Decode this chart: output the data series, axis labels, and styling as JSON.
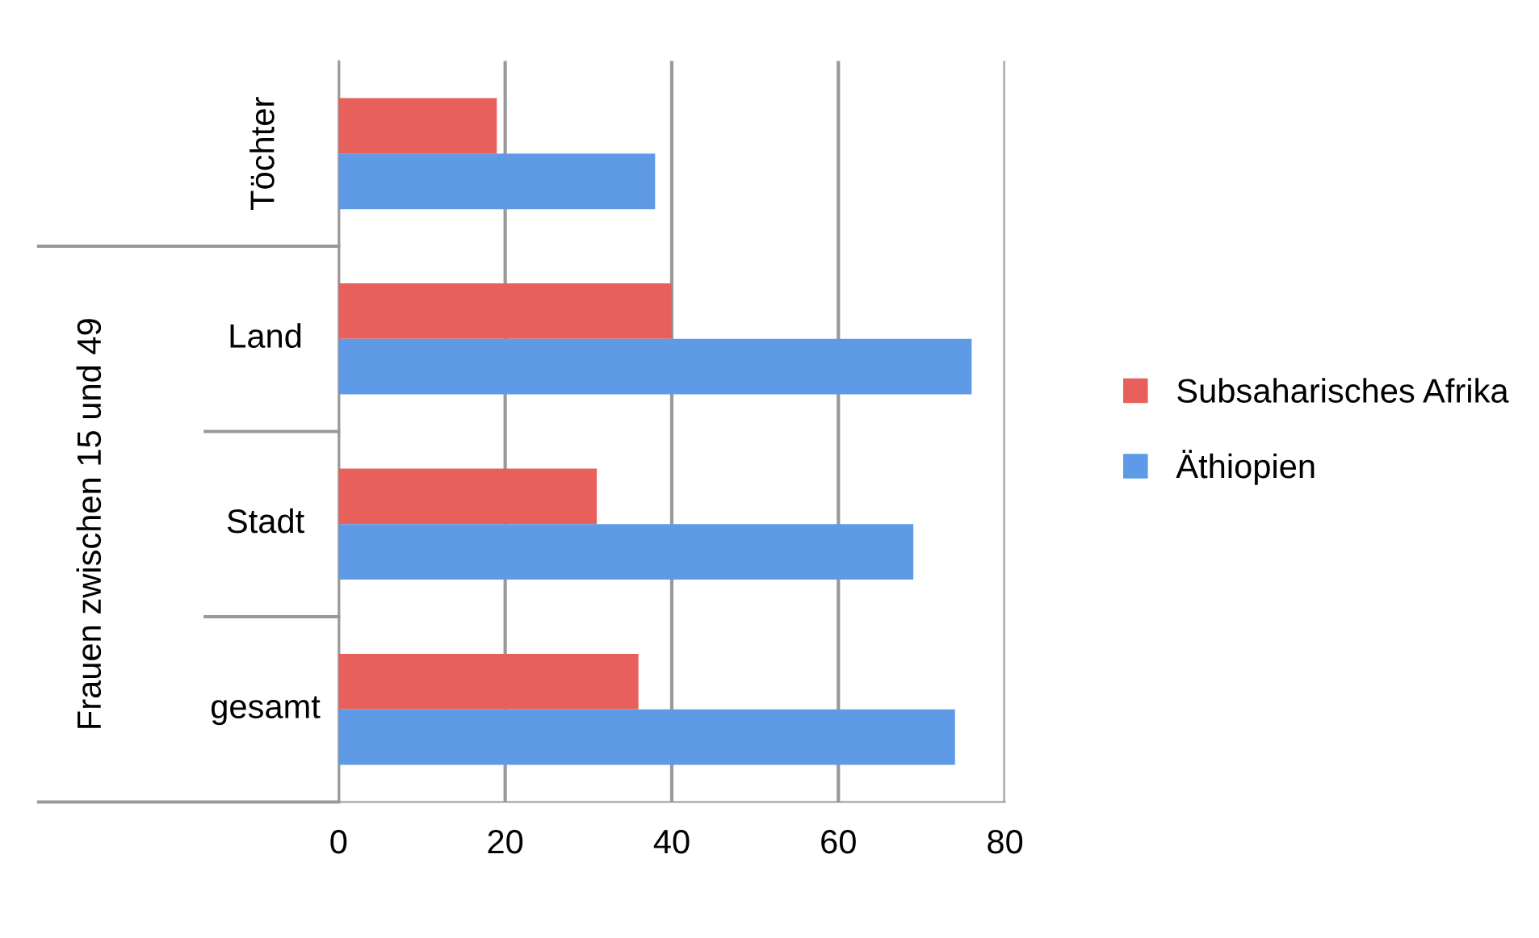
{
  "chart_data": {
    "type": "bar",
    "orientation": "horizontal",
    "categories": [
      "Töchter",
      "Land",
      "Stadt",
      "gesamt"
    ],
    "series": [
      {
        "name": "Subsaharisches Afrika",
        "color": "#e8605c",
        "values": [
          19,
          40,
          31,
          36
        ]
      },
      {
        "name": "Äthiopien",
        "color": "#5f9ae6",
        "values": [
          38,
          76,
          69,
          74
        ]
      }
    ],
    "annotations": [
      "Frauen zwischen 15 und 49"
    ],
    "xlim": [
      0,
      80
    ],
    "xticks": [
      0,
      20,
      40,
      60,
      80
    ],
    "grid": "x",
    "legend": "right"
  }
}
